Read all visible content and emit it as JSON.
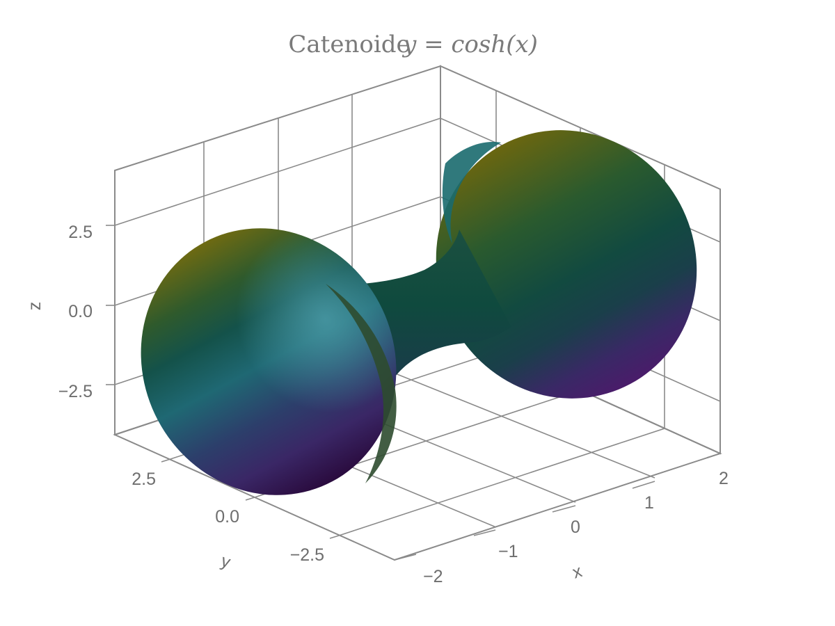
{
  "chart_data": {
    "type": "surface",
    "title": "Catenoide",
    "title_equation": "y = cosh(x)",
    "xlabel": "x",
    "ylabel": "y",
    "zlabel": "z",
    "x_ticks": [
      "−2",
      "−1",
      "0",
      "1",
      "2"
    ],
    "y_ticks": [
      "2.5",
      "0.0",
      "−2.5"
    ],
    "z_ticks": [
      "2.5",
      "0.0",
      "−2.5"
    ],
    "xlim": [
      -2,
      2
    ],
    "ylim": [
      -3.76,
      3.76
    ],
    "zlim": [
      -3.76,
      3.76
    ],
    "surface": {
      "equation": "radius = cosh(x), revolved about the x axis",
      "x_range": [
        -2,
        2
      ],
      "colormap": "viridis-like (purple → teal → green → olive)"
    },
    "grid": true
  }
}
